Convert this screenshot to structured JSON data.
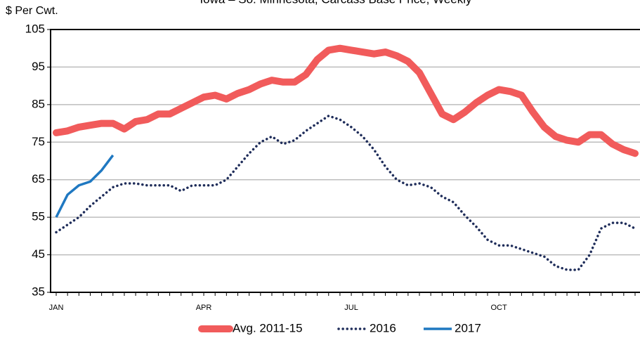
{
  "chart_data": {
    "type": "line",
    "title": "Iowa – So. Minnesota, Carcass Base Price, Weekly",
    "y_label": "$ Per Cwt.",
    "categories": [
      "JAN",
      null,
      null,
      null,
      null,
      null,
      null,
      null,
      null,
      null,
      null,
      null,
      null,
      "APR",
      null,
      null,
      null,
      null,
      null,
      null,
      null,
      null,
      null,
      null,
      null,
      null,
      "JUL",
      null,
      null,
      null,
      null,
      null,
      null,
      null,
      null,
      null,
      null,
      null,
      null,
      "OCT",
      null,
      null,
      null,
      null,
      null,
      null,
      null,
      null,
      null,
      null,
      null,
      null
    ],
    "series": [
      {
        "name": "Avg. 2011-15",
        "color": "#f15b5b",
        "style": "solid-thick",
        "values": [
          77.5,
          78,
          79,
          79.5,
          80,
          80,
          78.5,
          80.5,
          81,
          82.5,
          82.5,
          84,
          85.5,
          87,
          87.5,
          86.5,
          88,
          89,
          90.5,
          91.5,
          91,
          91,
          93,
          97,
          99.5,
          100,
          99.5,
          99,
          98.5,
          99,
          98,
          96.5,
          93.5,
          88,
          82.5,
          81,
          83,
          85.5,
          87.5,
          89,
          88.5,
          87.5,
          83,
          79,
          76.5,
          75.5,
          75,
          77,
          77,
          74.5,
          73,
          72
        ]
      },
      {
        "name": "2016",
        "color": "#1f2d5a",
        "style": "dotted",
        "values": [
          51,
          53,
          55,
          58,
          60.5,
          63,
          64,
          64,
          63.5,
          63.5,
          63.5,
          62,
          63.5,
          63.5,
          63.5,
          65,
          68.5,
          72,
          75,
          76.5,
          74.5,
          75.5,
          78,
          80,
          82,
          81,
          79,
          76.5,
          73,
          68.5,
          65,
          63.5,
          64,
          63,
          60.5,
          59,
          55.5,
          52.5,
          49,
          47.5,
          47.5,
          46.5,
          45.5,
          44.5,
          42,
          41,
          41,
          45,
          52,
          53.5,
          53.5,
          52
        ]
      },
      {
        "name": "2017",
        "color": "#1f78c1",
        "style": "solid",
        "values": [
          55,
          61,
          63.5,
          64.5,
          67.5,
          71.5,
          null,
          null,
          null,
          null,
          null,
          null,
          null,
          null,
          null,
          null,
          null,
          null,
          null,
          null,
          null,
          null,
          null,
          null,
          null,
          null,
          null,
          null,
          null,
          null,
          null,
          null,
          null,
          null,
          null,
          null,
          null,
          null,
          null,
          null,
          null,
          null,
          null,
          null,
          null,
          null,
          null,
          null,
          null,
          null,
          null,
          null
        ]
      }
    ],
    "ylim": [
      35,
      105
    ],
    "yticks": [
      35,
      45,
      55,
      65,
      75,
      85,
      95,
      105
    ],
    "grid": true
  }
}
